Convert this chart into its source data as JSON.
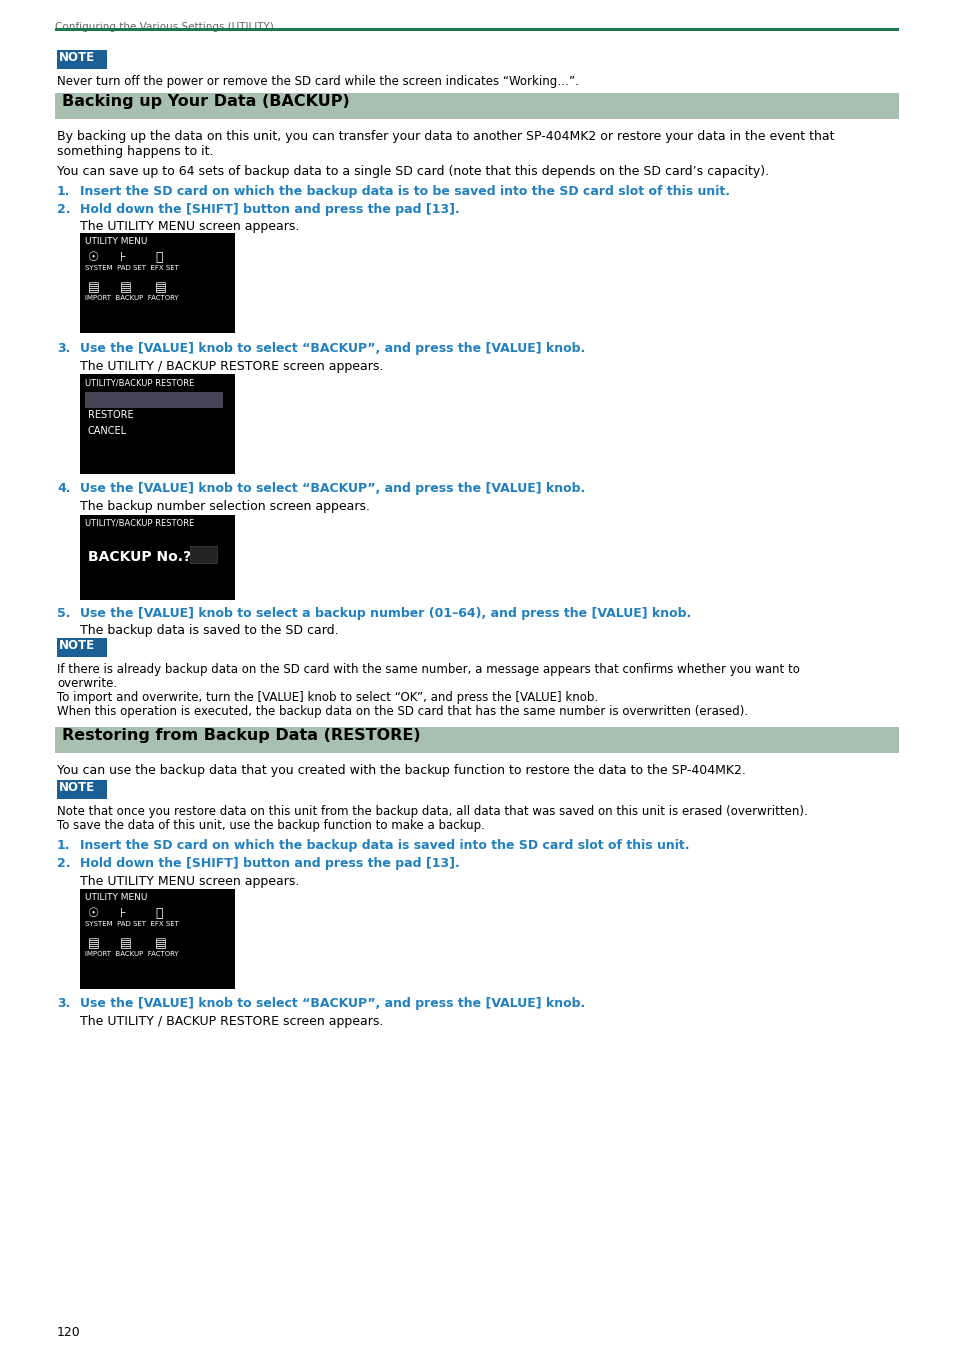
{
  "page_bg": "#ffffff",
  "header_line_color": "#1a7a4a",
  "header_bg": "#a8c0b0",
  "header_text_color": "#000000",
  "note_bg": "#1a5f96",
  "note_text_color": "#ffffff",
  "numbered_color": "#2080c0",
  "body_text_color": "#000000",
  "gray_text": "#555555",
  "screen_bg": "#000000",
  "screen_text_color": "#ffffff",
  "screen_select_bg": "#555566",
  "top_label": "Configuring the Various Settings (UTILITY)",
  "header1": "Backing up Your Data (BACKUP)",
  "header2": "Restoring from Backup Data (RESTORE)",
  "note1_text": "Never turn off the power or remove the SD card while the screen indicates “Working…”.",
  "para1a": "By backing up the data on this unit, you can transfer your data to another SP-404MK2 or restore your data in the event that",
  "para1b": "something happens to it.",
  "para2": "You can save up to 64 sets of backup data to a single SD card (note that this depends on the SD card’s capacity).",
  "step1_1": "Insert the SD card on which the backup data is to be saved into the SD card slot of this unit.",
  "step1_2": "Hold down the [SHIFT] button and press the pad [13].",
  "step1_2_sub": "The UTILITY MENU screen appears.",
  "step1_3": "Use the [VALUE] knob to select “BACKUP”, and press the [VALUE] knob.",
  "step1_3_sub": "The UTILITY / BACKUP RESTORE screen appears.",
  "step1_4": "Use the [VALUE] knob to select “BACKUP”, and press the [VALUE] knob.",
  "step1_4_sub": "The backup number selection screen appears.",
  "step1_5": "Use the [VALUE] knob to select a backup number (01–64), and press the [VALUE] knob.",
  "step1_5_sub": "The backup data is saved to the SD card.",
  "note2_line1": "If there is already backup data on the SD card with the same number, a message appears that confirms whether you want to",
  "note2_line2": "overwrite.",
  "note2_line3": "To import and overwrite, turn the [VALUE] knob to select “OK”, and press the [VALUE] knob.",
  "note2_line4": "When this operation is executed, the backup data on the SD card that has the same number is overwritten (erased).",
  "para3": "You can use the backup data that you created with the backup function to restore the data to the SP-404MK2.",
  "note3_line1": "Note that once you restore data on this unit from the backup data, all data that was saved on this unit is erased (overwritten).",
  "note3_line2": "To save the data of this unit, use the backup function to make a backup.",
  "step2_1": "Insert the SD card on which the backup data is saved into the SD card slot of this unit.",
  "step2_2": "Hold down the [SHIFT] button and press the pad [13].",
  "step2_2_sub": "The UTILITY MENU screen appears.",
  "step2_3": "Use the [VALUE] knob to select “BACKUP”, and press the [VALUE] knob.",
  "step2_3_sub": "The UTILITY / BACKUP RESTORE screen appears.",
  "page_number": "120"
}
